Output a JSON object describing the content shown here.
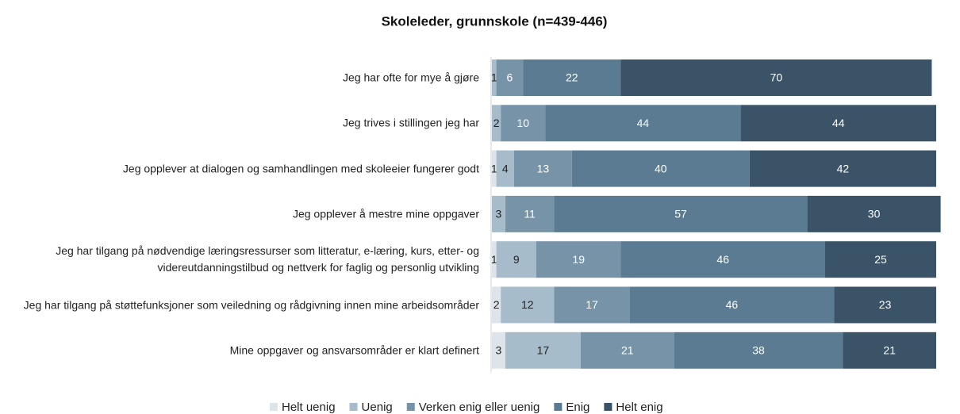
{
  "chart_data": {
    "type": "stacked-bar-horizontal",
    "title": "Skoleleder, grunnskole (n=439-446)",
    "categories": [
      "Jeg har ofte for mye å gjøre",
      "Jeg trives i stillingen jeg har",
      "Jeg opplever at dialogen og samhandlingen med skoleeier fungerer godt",
      "Jeg opplever å mestre mine oppgaver",
      "Jeg har tilgang på nødvendige læringsressurser som litteratur, e-læring, kurs, etter- og videreutdanningstilbud og nettverk for faglig og personlig utvikling",
      "Jeg har tilgang på støttefunksjoner som veiledning og rådgivning innen mine arbeidsområder",
      "Mine oppgaver og ansvarsområder er klart definert"
    ],
    "series": [
      {
        "name": "Helt uenig",
        "color": "#dde4ea",
        "values": [
          0,
          0,
          1,
          0,
          1,
          2,
          3
        ]
      },
      {
        "name": "Uenig",
        "color": "#a7bccb",
        "values": [
          1,
          2,
          4,
          3,
          9,
          12,
          17
        ]
      },
      {
        "name": "Verken enig eller uenig",
        "color": "#7793a8",
        "values": [
          6,
          10,
          13,
          11,
          19,
          17,
          21
        ]
      },
      {
        "name": "Enig",
        "color": "#5a7b92",
        "values": [
          22,
          44,
          40,
          57,
          46,
          46,
          38
        ]
      },
      {
        "name": "Helt enig",
        "color": "#3a5367",
        "values": [
          70,
          44,
          42,
          30,
          25,
          23,
          21
        ]
      }
    ],
    "xlim": [
      0,
      100
    ],
    "legend": "bottom"
  }
}
